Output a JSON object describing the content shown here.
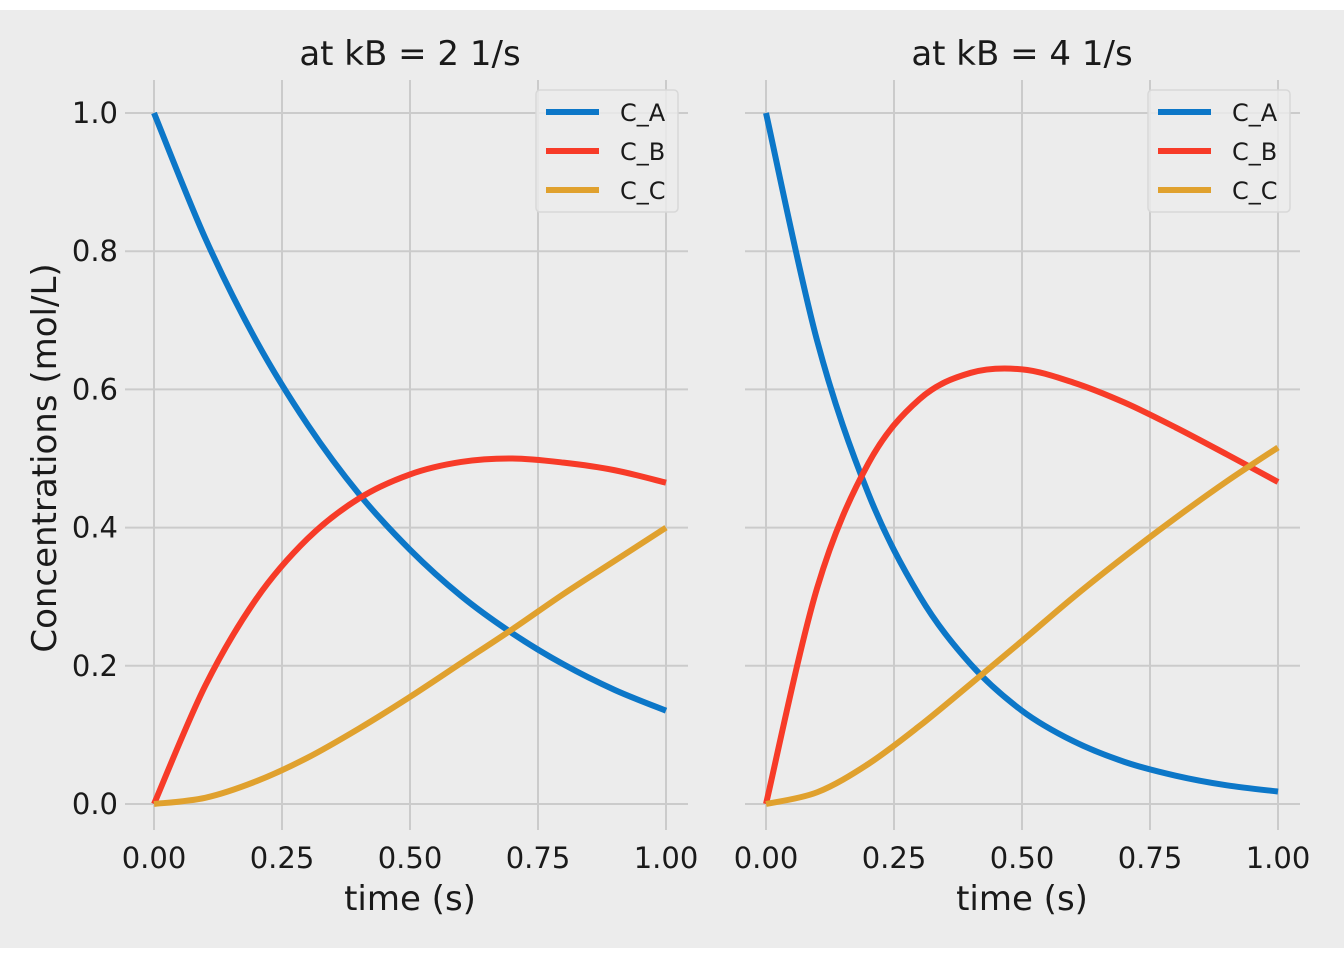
{
  "figure": {
    "background": "#ececec",
    "grid_color": "#cbcbcb",
    "colors": {
      "C_A": "#0c77c8",
      "C_B": "#f73b28",
      "C_C": "#e0a12e"
    }
  },
  "panels": [
    {
      "title": "at kB = 2 1/s",
      "xlabel": "time (s)",
      "ylabel": "Concentrations (mol/L)"
    },
    {
      "title": "at kB = 4 1/s",
      "xlabel": "time (s)",
      "ylabel": ""
    }
  ],
  "xticks": [
    "0.00",
    "0.25",
    "0.50",
    "0.75",
    "1.00"
  ],
  "yticks": [
    "0.0",
    "0.2",
    "0.4",
    "0.6",
    "0.8",
    "1.0"
  ],
  "legend": [
    "C_A",
    "C_B",
    "C_C"
  ],
  "chart_data": [
    {
      "type": "line",
      "title": "at kB = 2 1/s",
      "xlabel": "time (s)",
      "ylabel": "Concentrations (mol/L)",
      "xlim": [
        0,
        1
      ],
      "ylim": [
        0,
        1
      ],
      "grid": true,
      "legend_position": "upper right",
      "x": [
        0,
        0.1,
        0.2,
        0.3,
        0.4,
        0.5,
        0.6,
        0.7,
        0.8,
        0.9,
        1.0
      ],
      "series": [
        {
          "name": "C_A",
          "values": [
            1.0,
            0.819,
            0.67,
            0.549,
            0.449,
            0.368,
            0.301,
            0.247,
            0.202,
            0.165,
            0.135
          ]
        },
        {
          "name": "C_B",
          "values": [
            0.0,
            0.171,
            0.297,
            0.384,
            0.442,
            0.477,
            0.495,
            0.5,
            0.494,
            0.483,
            0.465
          ]
        },
        {
          "name": "C_C",
          "values": [
            0.0,
            0.009,
            0.033,
            0.067,
            0.109,
            0.155,
            0.204,
            0.253,
            0.304,
            0.352,
            0.4
          ]
        }
      ]
    },
    {
      "type": "line",
      "title": "at kB = 4 1/s",
      "xlabel": "time (s)",
      "ylabel": "",
      "xlim": [
        0,
        1
      ],
      "ylim": [
        0,
        1
      ],
      "grid": true,
      "legend_position": "upper right",
      "x": [
        0,
        0.1,
        0.2,
        0.3,
        0.4,
        0.5,
        0.6,
        0.7,
        0.8,
        0.9,
        1.0
      ],
      "series": [
        {
          "name": "C_A",
          "values": [
            1.0,
            0.67,
            0.449,
            0.301,
            0.202,
            0.135,
            0.091,
            0.061,
            0.041,
            0.027,
            0.018
          ]
        },
        {
          "name": "C_B",
          "values": [
            0.0,
            0.313,
            0.493,
            0.586,
            0.624,
            0.629,
            0.61,
            0.581,
            0.545,
            0.506,
            0.466
          ]
        },
        {
          "name": "C_C",
          "values": [
            0.0,
            0.017,
            0.058,
            0.113,
            0.174,
            0.236,
            0.299,
            0.358,
            0.414,
            0.467,
            0.516
          ]
        }
      ]
    }
  ]
}
